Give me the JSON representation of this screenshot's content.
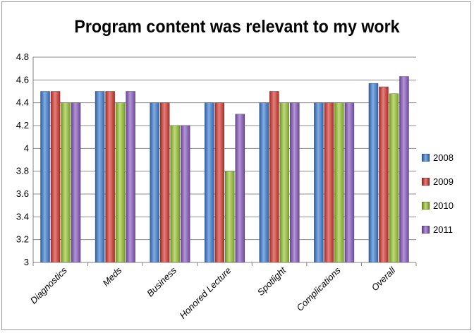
{
  "chart_data": {
    "type": "bar",
    "title": "Program content was relevant to my work",
    "xlabel": "",
    "ylabel": "",
    "ylim": [
      3,
      4.8
    ],
    "yticks": [
      "3",
      "3.2",
      "3.4",
      "3.6",
      "3.8",
      "4",
      "4.2",
      "4.4",
      "4.6",
      "4.8"
    ],
    "grid": true,
    "legend_position": "right",
    "categories": [
      "Diagnostics",
      "Meds",
      "Business",
      "Honored Lecture",
      "Spotlight",
      "Complications",
      "Overall"
    ],
    "series": [
      {
        "name": "2008",
        "color": "#3f7fd6",
        "values": [
          4.5,
          4.5,
          4.4,
          4.4,
          4.4,
          4.4,
          4.57
        ]
      },
      {
        "name": "2009",
        "color": "#d83a32",
        "values": [
          4.5,
          4.5,
          4.4,
          4.4,
          4.5,
          4.4,
          4.54
        ]
      },
      {
        "name": "2010",
        "color": "#9bc734",
        "values": [
          4.4,
          4.4,
          4.2,
          3.8,
          4.4,
          4.4,
          4.48
        ]
      },
      {
        "name": "2011",
        "color": "#8a5cc2",
        "values": [
          4.4,
          4.5,
          4.2,
          4.3,
          4.4,
          4.4,
          4.63
        ]
      }
    ]
  }
}
